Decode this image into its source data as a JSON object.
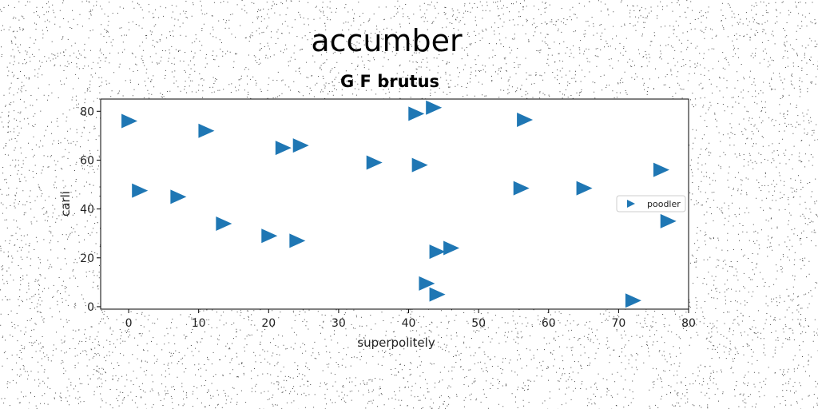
{
  "chart_data": {
    "type": "scatter",
    "suptitle": "accumber",
    "title": "G F brutus",
    "xlabel": "superpolitely",
    "ylabel": "carli",
    "xlim": [
      -4,
      80
    ],
    "ylim": [
      -1,
      85
    ],
    "xticks": [
      0,
      10,
      20,
      30,
      40,
      50,
      60,
      70,
      80
    ],
    "yticks": [
      0,
      20,
      40,
      60,
      80
    ],
    "grid": false,
    "legend_position": "center-right",
    "marker": "triangle-right",
    "color": "#1f77b4",
    "series": [
      {
        "name": "poodler",
        "points": [
          [
            0,
            76
          ],
          [
            11,
            72
          ],
          [
            22,
            65
          ],
          [
            24.5,
            66
          ],
          [
            41,
            79
          ],
          [
            43.5,
            81.5
          ],
          [
            56.5,
            76.5
          ],
          [
            35,
            59
          ],
          [
            41.5,
            58
          ],
          [
            1.5,
            47.5
          ],
          [
            7,
            45
          ],
          [
            56,
            48.5
          ],
          [
            65,
            48.5
          ],
          [
            76,
            56
          ],
          [
            77,
            35
          ],
          [
            13.5,
            34
          ],
          [
            20,
            29
          ],
          [
            24,
            27
          ],
          [
            44,
            22.5
          ],
          [
            46,
            24
          ],
          [
            42.5,
            9.5
          ],
          [
            44,
            5
          ],
          [
            72,
            2.5
          ]
        ]
      }
    ]
  }
}
